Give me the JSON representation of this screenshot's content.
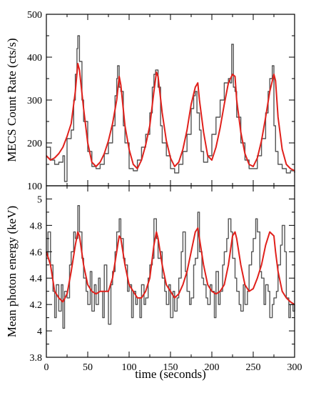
{
  "chart_data": [
    {
      "type": "line",
      "panel": "top",
      "xlabel": "",
      "ylabel": "MECS Count Rate (cts/s)",
      "xlim": [
        0,
        300
      ],
      "ylim": [
        100,
        500
      ],
      "x_ticks": [
        0,
        50,
        100,
        150,
        200,
        250,
        300
      ],
      "y_ticks": [
        100,
        200,
        300,
        400,
        500
      ],
      "x_tick_labels_shown": false,
      "grid": false,
      "series": [
        {
          "color": "#555555",
          "style": "step",
          "x": [
            0,
            5,
            10,
            15,
            20,
            22,
            25,
            30,
            33,
            35,
            37,
            38,
            40,
            43,
            45,
            50,
            55,
            60,
            65,
            70,
            75,
            80,
            83,
            85,
            86,
            88,
            90,
            93,
            95,
            100,
            105,
            110,
            115,
            120,
            125,
            128,
            130,
            132,
            135,
            138,
            140,
            145,
            150,
            155,
            160,
            165,
            170,
            175,
            178,
            180,
            182,
            185,
            187,
            190,
            195,
            200,
            205,
            210,
            215,
            220,
            222,
            224,
            226,
            228,
            230,
            235,
            240,
            245,
            250,
            255,
            260,
            265,
            268,
            270,
            273,
            275,
            277,
            280,
            285,
            290,
            295,
            300
          ],
          "y": [
            190,
            160,
            150,
            155,
            170,
            110,
            210,
            230,
            300,
            360,
            420,
            450,
            390,
            300,
            250,
            180,
            145,
            140,
            150,
            175,
            200,
            240,
            310,
            350,
            380,
            330,
            320,
            240,
            200,
            140,
            135,
            160,
            190,
            220,
            270,
            330,
            360,
            370,
            330,
            240,
            200,
            170,
            140,
            130,
            150,
            180,
            220,
            280,
            310,
            320,
            270,
            230,
            180,
            155,
            170,
            220,
            260,
            300,
            340,
            350,
            340,
            430,
            330,
            320,
            260,
            200,
            160,
            140,
            140,
            170,
            210,
            270,
            320,
            350,
            380,
            240,
            180,
            150,
            140,
            130,
            135,
            130
          ]
        },
        {
          "color": "#e0201b",
          "style": "line",
          "x": [
            0,
            5,
            10,
            15,
            20,
            25,
            30,
            35,
            38,
            40,
            45,
            50,
            55,
            60,
            65,
            70,
            75,
            80,
            85,
            88,
            90,
            95,
            100,
            105,
            110,
            115,
            120,
            125,
            130,
            133,
            135,
            140,
            145,
            150,
            155,
            160,
            165,
            170,
            175,
            180,
            183,
            185,
            190,
            195,
            200,
            205,
            210,
            215,
            220,
            225,
            228,
            230,
            235,
            240,
            245,
            250,
            255,
            260,
            265,
            270,
            275,
            277,
            280,
            285,
            290,
            295,
            300
          ],
          "y": [
            170,
            160,
            165,
            175,
            190,
            215,
            245,
            320,
            385,
            370,
            280,
            200,
            155,
            145,
            155,
            175,
            205,
            245,
            300,
            355,
            335,
            240,
            185,
            150,
            140,
            160,
            195,
            240,
            320,
            365,
            355,
            270,
            205,
            165,
            145,
            155,
            185,
            230,
            290,
            330,
            340,
            300,
            225,
            170,
            160,
            190,
            235,
            290,
            340,
            360,
            355,
            300,
            225,
            175,
            150,
            145,
            165,
            205,
            260,
            320,
            360,
            345,
            260,
            185,
            150,
            140,
            135
          ]
        }
      ]
    },
    {
      "type": "line",
      "panel": "bottom",
      "xlabel": "time  (seconds)",
      "ylabel": "Mean photon energy (keV)",
      "xlim": [
        0,
        300
      ],
      "ylim": [
        3.8,
        5.1
      ],
      "x_ticks": [
        0,
        50,
        100,
        150,
        200,
        250,
        300
      ],
      "y_ticks": [
        3.8,
        4,
        4.2,
        4.4,
        4.6,
        4.8,
        5
      ],
      "grid": false,
      "series": [
        {
          "color": "#555555",
          "style": "step",
          "x": [
            0,
            2,
            5,
            8,
            10,
            12,
            15,
            18,
            20,
            22,
            25,
            28,
            30,
            33,
            35,
            38,
            40,
            43,
            45,
            48,
            50,
            53,
            55,
            58,
            60,
            63,
            65,
            68,
            70,
            73,
            75,
            78,
            80,
            83,
            85,
            88,
            90,
            93,
            95,
            98,
            100,
            103,
            105,
            108,
            110,
            113,
            115,
            118,
            120,
            123,
            125,
            128,
            130,
            133,
            135,
            138,
            140,
            143,
            145,
            148,
            150,
            153,
            155,
            158,
            160,
            163,
            165,
            168,
            170,
            173,
            175,
            178,
            180,
            183,
            185,
            188,
            190,
            193,
            195,
            198,
            200,
            203,
            205,
            208,
            210,
            213,
            215,
            218,
            220,
            223,
            225,
            228,
            230,
            233,
            235,
            238,
            240,
            243,
            245,
            248,
            250,
            253,
            255,
            258,
            260,
            263,
            265,
            268,
            270,
            273,
            275,
            278,
            280,
            283,
            285,
            288,
            290,
            293,
            295,
            298,
            300
          ],
          "y": [
            4.55,
            4.75,
            4.5,
            4.3,
            4.1,
            4.35,
            4.15,
            4.35,
            4.02,
            4.3,
            4.25,
            4.5,
            4.6,
            4.75,
            4.7,
            4.95,
            4.75,
            4.55,
            4.4,
            4.3,
            4.2,
            4.45,
            4.15,
            4.35,
            4.2,
            4.4,
            4.3,
            4.1,
            4.5,
            4.3,
            4.05,
            4.35,
            4.45,
            4.6,
            4.75,
            4.85,
            4.7,
            4.55,
            4.5,
            4.3,
            4.35,
            4.1,
            4.3,
            4.2,
            4.25,
            4.1,
            4.35,
            4.2,
            4.25,
            4.4,
            4.5,
            4.55,
            4.85,
            4.7,
            4.55,
            4.6,
            4.4,
            4.3,
            4.2,
            4.35,
            4.1,
            4.3,
            4.15,
            4.25,
            4.4,
            4.6,
            4.75,
            4.45,
            4.3,
            4.2,
            4.25,
            4.5,
            4.55,
            4.9,
            4.6,
            4.4,
            4.35,
            4.25,
            4.2,
            4.35,
            4.3,
            4.1,
            4.45,
            4.2,
            4.3,
            4.5,
            4.6,
            4.7,
            4.85,
            4.75,
            4.55,
            4.4,
            4.3,
            4.2,
            4.15,
            4.35,
            4.2,
            4.3,
            4.5,
            4.6,
            4.7,
            4.85,
            4.75,
            4.45,
            4.4,
            4.2,
            4.35,
            4.3,
            4.1,
            4.2,
            4.25,
            4.3,
            4.5,
            4.65,
            4.8,
            4.6,
            4.25,
            4.1,
            4.2,
            4.15,
            4.2
          ]
        },
        {
          "color": "#e0201b",
          "style": "line",
          "x": [
            0,
            5,
            10,
            15,
            20,
            25,
            30,
            35,
            38,
            40,
            45,
            50,
            55,
            60,
            65,
            70,
            75,
            80,
            85,
            88,
            90,
            95,
            100,
            105,
            110,
            115,
            120,
            125,
            130,
            133,
            135,
            140,
            145,
            150,
            155,
            160,
            165,
            170,
            175,
            180,
            183,
            185,
            190,
            195,
            200,
            205,
            210,
            215,
            220,
            225,
            228,
            230,
            235,
            240,
            245,
            250,
            255,
            260,
            265,
            270,
            275,
            277,
            280,
            285,
            290,
            295,
            300
          ],
          "y": [
            4.6,
            4.5,
            4.3,
            4.25,
            4.22,
            4.28,
            4.45,
            4.65,
            4.75,
            4.72,
            4.5,
            4.35,
            4.3,
            4.28,
            4.3,
            4.3,
            4.3,
            4.4,
            4.6,
            4.72,
            4.7,
            4.5,
            4.35,
            4.3,
            4.25,
            4.25,
            4.3,
            4.4,
            4.65,
            4.75,
            4.7,
            4.5,
            4.35,
            4.3,
            4.25,
            4.28,
            4.35,
            4.45,
            4.6,
            4.75,
            4.78,
            4.7,
            4.5,
            4.35,
            4.3,
            4.28,
            4.3,
            4.35,
            4.5,
            4.72,
            4.75,
            4.7,
            4.5,
            4.35,
            4.3,
            4.32,
            4.4,
            4.5,
            4.65,
            4.75,
            4.72,
            4.6,
            4.45,
            4.3,
            4.25,
            4.22,
            4.2
          ]
        }
      ]
    }
  ]
}
